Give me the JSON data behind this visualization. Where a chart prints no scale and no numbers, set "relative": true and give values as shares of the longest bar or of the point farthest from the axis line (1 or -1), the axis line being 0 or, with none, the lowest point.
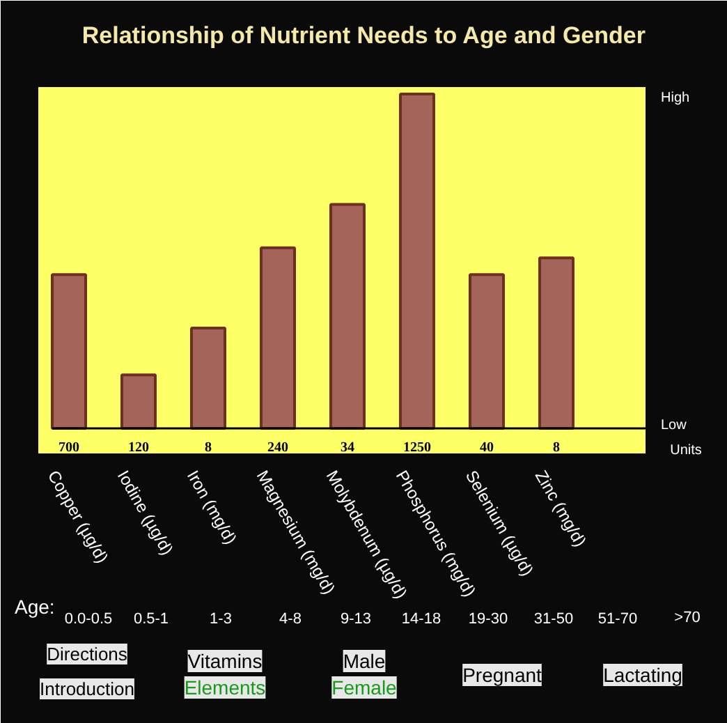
{
  "chart_data": {
    "type": "bar",
    "title": "Relationship of Nutrient Needs to Age and Gender",
    "categories": [
      "Copper (µg/d)",
      "Iodine (µg/d)",
      "Iron (mg/d)",
      "Magnesium (mg/d)",
      "Molybdenum (µg/d)",
      "Phosphorus (mg/d)",
      "Selenium (µg/d)",
      "Zinc (mg/d)"
    ],
    "values": [
      0.46,
      0.16,
      0.3,
      0.54,
      0.67,
      1,
      0.46,
      0.51
    ],
    "relative": true,
    "color": "#a5645a",
    "annotations": [
      "High",
      "Low",
      "Units",
      "Age:",
      "0.0-0.5",
      "0.5-1",
      "1-3",
      "4-8",
      "9-13",
      "14-18",
      "19-30",
      "31-50",
      "51-70",
      ">70",
      "Directions",
      "Introduction",
      "Vitamins",
      "Elements",
      "Male",
      "Female",
      "Pregnant",
      "Lactating",
      "700",
      "120",
      "8",
      "240",
      "34",
      "1250",
      "40",
      "8"
    ]
  }
}
